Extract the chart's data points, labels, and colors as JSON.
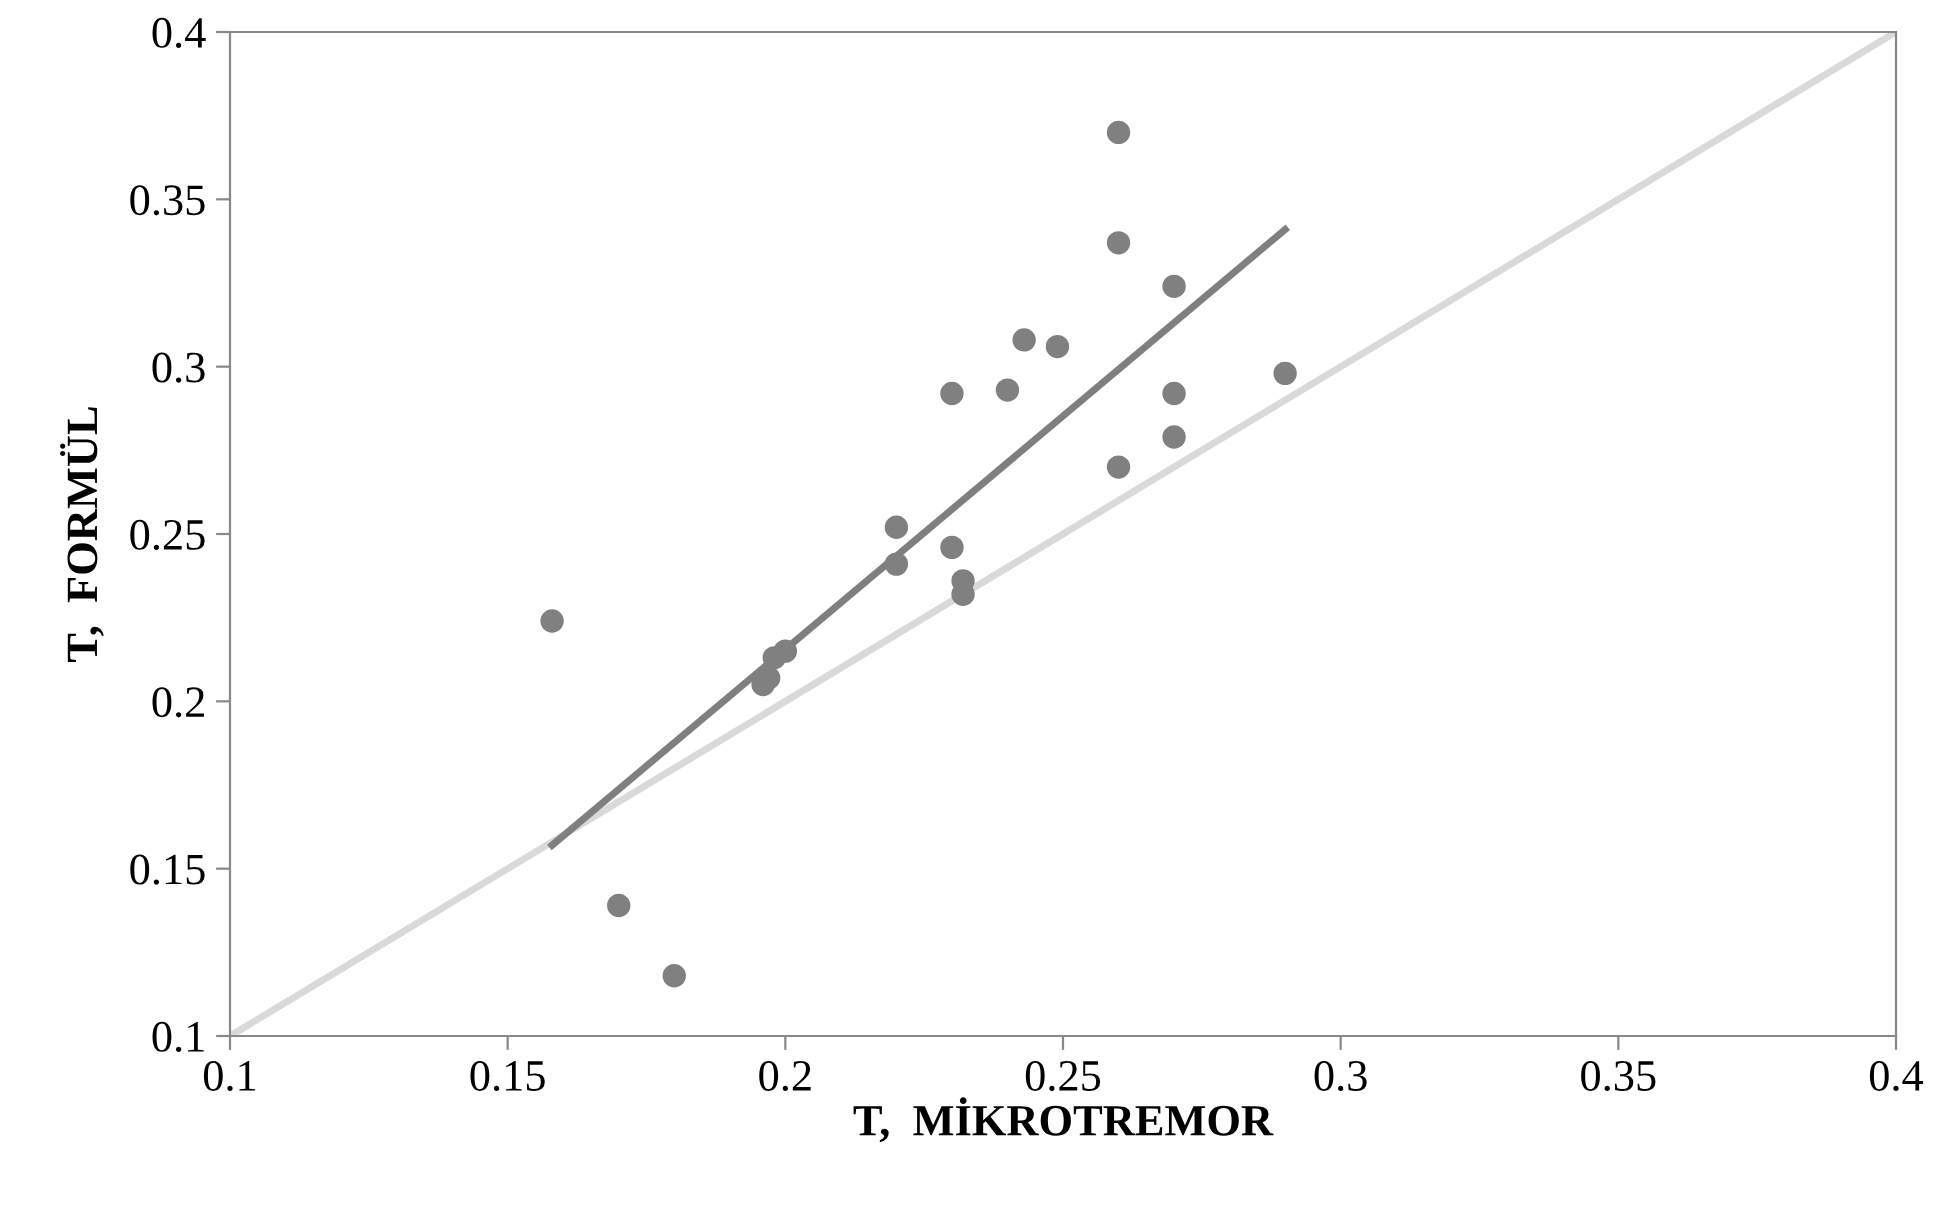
{
  "chart_data": {
    "type": "scatter",
    "xlabel": "T,  MİKROTREMOR",
    "ylabel": "T,  FORMÜL",
    "xlim": [
      0.1,
      0.4
    ],
    "ylim": [
      0.1,
      0.4
    ],
    "xticks": [
      0.1,
      0.15,
      0.2,
      0.25,
      0.3,
      0.35,
      0.4
    ],
    "yticks": [
      0.1,
      0.15,
      0.2,
      0.25,
      0.3,
      0.35,
      0.4
    ],
    "grid": false,
    "series": [
      {
        "marker": "circle",
        "color": "#808080",
        "x": [
          0.158,
          0.17,
          0.18,
          0.196,
          0.197,
          0.198,
          0.2,
          0.22,
          0.22,
          0.23,
          0.232,
          0.232,
          0.23,
          0.24,
          0.243,
          0.249,
          0.26,
          0.26,
          0.26,
          0.27,
          0.27,
          0.27,
          0.29
        ],
        "values": [
          0.224,
          0.139,
          0.118,
          0.205,
          0.207,
          0.213,
          0.215,
          0.252,
          0.241,
          0.246,
          0.236,
          0.232,
          0.292,
          0.293,
          0.308,
          0.306,
          0.37,
          0.337,
          0.27,
          0.324,
          0.292,
          0.279,
          0.298
        ]
      },
      {
        "type": "line",
        "color": "#7f7f7f",
        "x": [
          0.158,
          0.29
        ],
        "values": [
          0.157,
          0.341
        ]
      },
      {
        "type": "line",
        "color": "#d9d9d9",
        "x": [
          0.1,
          0.4
        ],
        "values": [
          0.1,
          0.4
        ]
      }
    ]
  }
}
